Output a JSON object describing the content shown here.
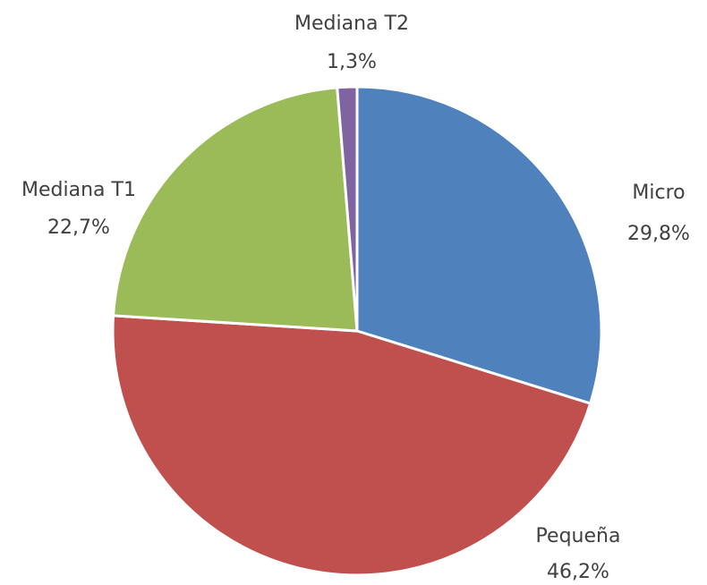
{
  "chart_data": {
    "type": "pie",
    "categories": [
      "Micro",
      "Pequeña",
      "Mediana T1",
      "Mediana T2"
    ],
    "values": [
      29.8,
      46.2,
      22.7,
      1.3
    ],
    "value_labels": [
      "29,8%",
      "46,2%",
      "22,7%",
      "1,3%"
    ],
    "colors": [
      "#4f81bd",
      "#c0504d",
      "#9bbb59",
      "#8064a2"
    ]
  }
}
